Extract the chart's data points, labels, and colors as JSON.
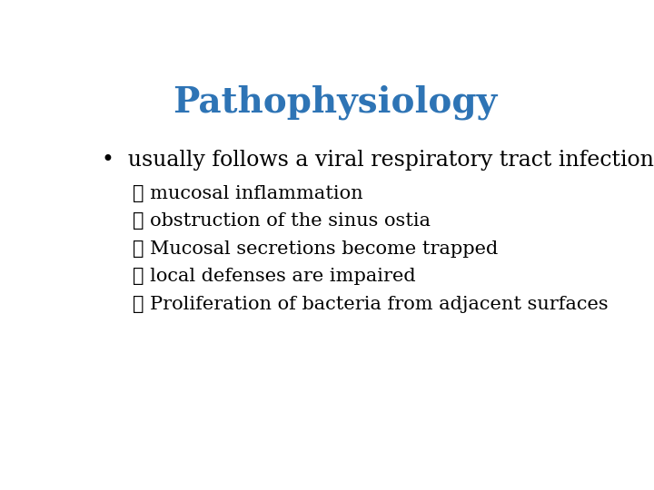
{
  "title": "Pathophysiology",
  "title_color": "#2E74B5",
  "title_fontsize": 28,
  "title_fontweight": "bold",
  "background_color": "#ffffff",
  "bullet_text": "usually follows a viral respiratory tract infection",
  "bullet_color": "#000000",
  "bullet_fontsize": 17,
  "sub_items": [
    "➢ mucosal inflammation",
    "➢ obstruction of the sinus ostia",
    "➢ Mucosal secretions become trapped",
    "➢ local defenses are impaired",
    "➢ Proliferation of bacteria from adjacent surfaces"
  ],
  "sub_color": "#000000",
  "sub_fontsize": 15,
  "font_family": "serif"
}
